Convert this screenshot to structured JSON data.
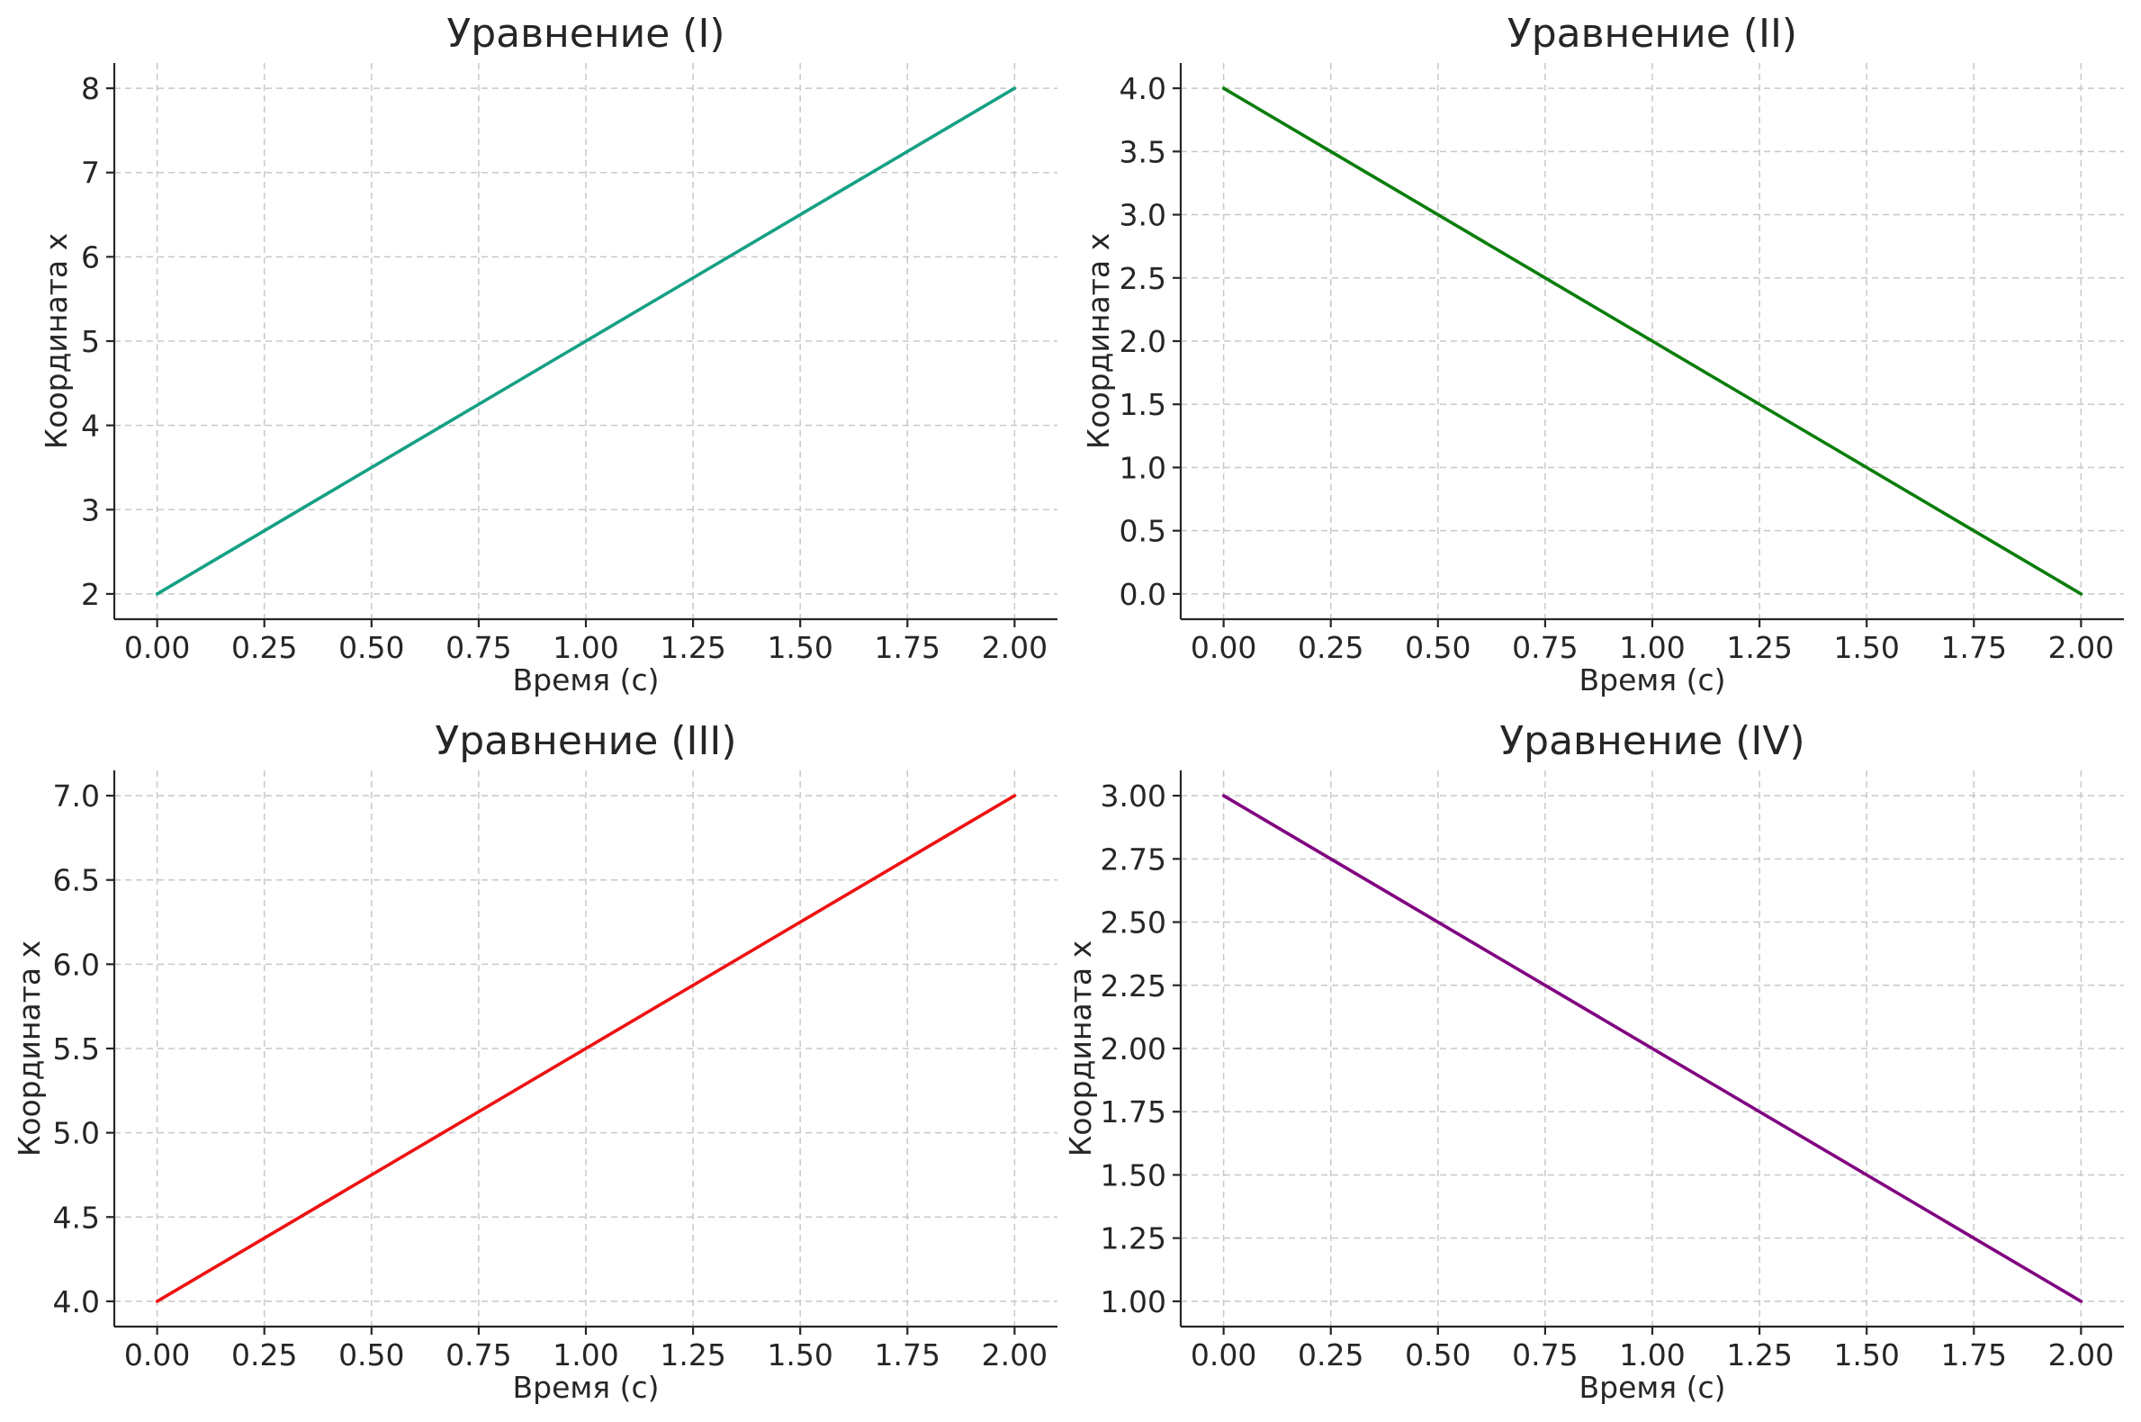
{
  "chart_data": [
    {
      "type": "line",
      "title": "Уравнение (I)",
      "xlabel": "Время (с)",
      "ylabel": "Координата x",
      "x": [
        0,
        2
      ],
      "series": [
        {
          "values": [
            2,
            8
          ],
          "color": "#16a085"
        }
      ],
      "xlim": [
        -0.1,
        2.1
      ],
      "ylim": [
        1.7,
        8.3
      ],
      "xticks": [
        0,
        0.25,
        0.5,
        0.75,
        1,
        1.25,
        1.5,
        1.75,
        2
      ],
      "xtick_labels": [
        "0.00",
        "0.25",
        "0.50",
        "0.75",
        "1.00",
        "1.25",
        "1.50",
        "1.75",
        "2.00"
      ],
      "yticks": [
        2,
        3,
        4,
        5,
        6,
        7,
        8
      ],
      "ytick_labels": [
        "2",
        "3",
        "4",
        "5",
        "6",
        "7",
        "8"
      ],
      "grid": true
    },
    {
      "type": "line",
      "title": "Уравнение (II)",
      "xlabel": "Время (с)",
      "ylabel": "Координата x",
      "x": [
        0,
        2
      ],
      "series": [
        {
          "values": [
            4,
            0
          ],
          "color": "#0a7d0a"
        }
      ],
      "xlim": [
        -0.1,
        2.1
      ],
      "ylim": [
        -0.2,
        4.2
      ],
      "xticks": [
        0,
        0.25,
        0.5,
        0.75,
        1,
        1.25,
        1.5,
        1.75,
        2
      ],
      "xtick_labels": [
        "0.00",
        "0.25",
        "0.50",
        "0.75",
        "1.00",
        "1.25",
        "1.50",
        "1.75",
        "2.00"
      ],
      "yticks": [
        0,
        0.5,
        1,
        1.5,
        2,
        2.5,
        3,
        3.5,
        4
      ],
      "ytick_labels": [
        "0.0",
        "0.5",
        "1.0",
        "1.5",
        "2.0",
        "2.5",
        "3.0",
        "3.5",
        "4.0"
      ],
      "grid": true
    },
    {
      "type": "line",
      "title": "Уравнение (III)",
      "xlabel": "Время (с)",
      "ylabel": "Координата x",
      "x": [
        0,
        2
      ],
      "series": [
        {
          "values": [
            4,
            7
          ],
          "color": "#ee1111"
        }
      ],
      "xlim": [
        -0.1,
        2.1
      ],
      "ylim": [
        3.85,
        7.15
      ],
      "xticks": [
        0,
        0.25,
        0.5,
        0.75,
        1,
        1.25,
        1.5,
        1.75,
        2
      ],
      "xtick_labels": [
        "0.00",
        "0.25",
        "0.50",
        "0.75",
        "1.00",
        "1.25",
        "1.50",
        "1.75",
        "2.00"
      ],
      "yticks": [
        4,
        4.5,
        5,
        5.5,
        6,
        6.5,
        7
      ],
      "ytick_labels": [
        "4.0",
        "4.5",
        "5.0",
        "5.5",
        "6.0",
        "6.5",
        "7.0"
      ],
      "grid": true
    },
    {
      "type": "line",
      "title": "Уравнение (IV)",
      "xlabel": "Время (с)",
      "ylabel": "Координата x",
      "x": [
        0,
        2
      ],
      "series": [
        {
          "values": [
            3,
            1
          ],
          "color": "#800080"
        }
      ],
      "xlim": [
        -0.1,
        2.1
      ],
      "ylim": [
        0.9,
        3.1
      ],
      "xticks": [
        0,
        0.25,
        0.5,
        0.75,
        1,
        1.25,
        1.5,
        1.75,
        2
      ],
      "xtick_labels": [
        "0.00",
        "0.25",
        "0.50",
        "0.75",
        "1.00",
        "1.25",
        "1.50",
        "1.75",
        "2.00"
      ],
      "yticks": [
        1,
        1.25,
        1.5,
        1.75,
        2,
        2.25,
        2.5,
        2.75,
        3
      ],
      "ytick_labels": [
        "1.00",
        "1.25",
        "1.50",
        "1.75",
        "2.00",
        "2.25",
        "2.50",
        "2.75",
        "3.00"
      ],
      "grid": true
    }
  ]
}
